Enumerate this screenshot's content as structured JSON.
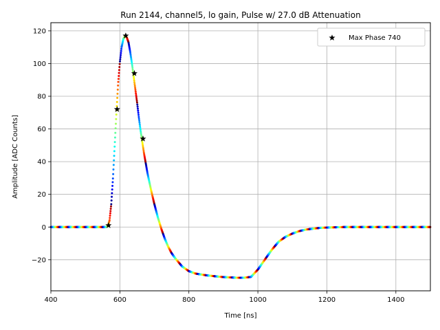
{
  "chart_data": {
    "type": "scatter",
    "title": "Run 2144, channel5, lo gain, Pulse w/ 27.0 dB Attenuation",
    "xlabel": "Time [ns]",
    "ylabel": "Amplitude [ADC Counts]",
    "xlim": [
      400,
      1500
    ],
    "ylim": [
      -39,
      125
    ],
    "xticks": [
      400,
      600,
      800,
      1000,
      1200,
      1400
    ],
    "yticks": [
      -20,
      0,
      20,
      40,
      60,
      80,
      100,
      120
    ],
    "xtick_labels": [
      "400",
      "600",
      "800",
      "1000",
      "1200",
      "1400"
    ],
    "ytick_labels": [
      "−20",
      "0",
      "20",
      "40",
      "60",
      "80",
      "100",
      "120"
    ],
    "grid": true,
    "legend_position": "top-right",
    "colormap": "jet",
    "series": [
      {
        "name": "Max Phase 740",
        "marker": "star",
        "color": "#000000",
        "points": [
          {
            "x": 567,
            "y": 1
          },
          {
            "x": 592,
            "y": 72
          },
          {
            "x": 617,
            "y": 117
          },
          {
            "x": 642,
            "y": 94
          },
          {
            "x": 667,
            "y": 54
          }
        ]
      }
    ],
    "pulse_shape": {
      "x": [
        400,
        540,
        560,
        565,
        570,
        575,
        580,
        585,
        590,
        595,
        600,
        605,
        610,
        615,
        620,
        625,
        630,
        635,
        640,
        645,
        650,
        655,
        660,
        665,
        670,
        675,
        680,
        690,
        700,
        710,
        720,
        730,
        740,
        750,
        760,
        780,
        800,
        820,
        850,
        880,
        900,
        920,
        940,
        960,
        980,
        1000,
        1020,
        1040,
        1060,
        1080,
        1100,
        1120,
        1140,
        1160,
        1180,
        1200,
        1250,
        1300,
        1400,
        1500
      ],
      "y": [
        0,
        0,
        0,
        0.5,
        4,
        14,
        30,
        50,
        70,
        88,
        101,
        110,
        115,
        117,
        116,
        113,
        107,
        100,
        92,
        84,
        76,
        67,
        59,
        52,
        45,
        39,
        33,
        23,
        14,
        6,
        -1,
        -7,
        -12,
        -16,
        -19,
        -24,
        -27,
        -28.5,
        -29.5,
        -30.2,
        -30.6,
        -30.8,
        -31,
        -31,
        -30.5,
        -26,
        -20,
        -14,
        -9,
        -6,
        -4,
        -2.5,
        -1.5,
        -1,
        -0.5,
        -0.3,
        0,
        0,
        0,
        0
      ]
    }
  }
}
